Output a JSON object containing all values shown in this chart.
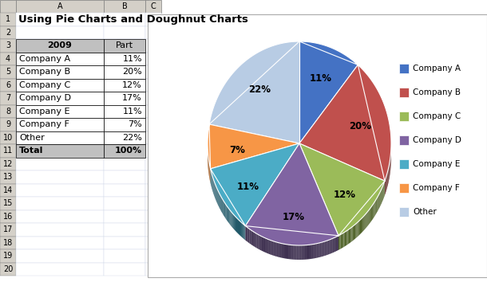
{
  "title": "Using Pie Charts and Doughnut Charts",
  "header_year": "2009",
  "header_part": "Part",
  "col_a_labels": [
    "Company A",
    "Company B",
    "Company C",
    "Company D",
    "Company E",
    "Company F",
    "Other",
    "Total"
  ],
  "col_b_labels": [
    "11%",
    "20%",
    "12%",
    "17%",
    "11%",
    "7%",
    "22%",
    "100%"
  ],
  "values": [
    11,
    20,
    12,
    17,
    11,
    7,
    22
  ],
  "pie_colors": [
    "#4472C4",
    "#C0504D",
    "#9BBB59",
    "#8064A2",
    "#4BACC6",
    "#F79646",
    "#B8CCE4"
  ],
  "pie_colors_dark": [
    "#17375E",
    "#632523",
    "#4F6228",
    "#3F3151",
    "#215868",
    "#974706",
    "#6D819C"
  ],
  "legend_labels": [
    "Company A",
    "Company B",
    "Company C",
    "Company D",
    "Company E",
    "Company F",
    "Other"
  ],
  "pct_labels": [
    "11%",
    "20%",
    "12%",
    "17%",
    "11%",
    "7%",
    "22%"
  ],
  "excel_bg": "#FFFFFF",
  "sheet_bg": "#FFFFFF",
  "header_col_bg": "#D4D0C8",
  "row_header_bg": "#D4D0C8",
  "table_header_bg": "#BFBFBF",
  "total_row_bg": "#BFBFBF",
  "chart_bg": "#FFFFFF",
  "grid_line_color": "#D0D8E8",
  "cell_border_color": "#000000",
  "startangle": 90
}
